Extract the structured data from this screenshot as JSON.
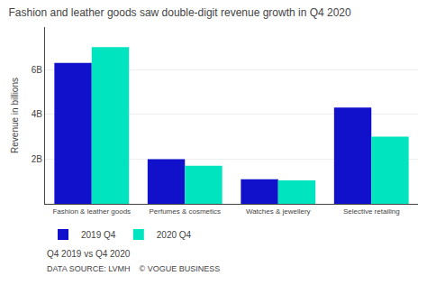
{
  "chart_data": {
    "type": "bar",
    "title": "Fashion and leather goods saw double-digit revenue growth in Q4 2020",
    "ylabel": "Revenue in billions",
    "categories": [
      "Fashion & leather goods",
      "Perfumes & cosmetics",
      "Watches & jewellery",
      "Selective retailing"
    ],
    "series": [
      {
        "name": "2019 Q4",
        "color": "#1111cc",
        "values": [
          6.3,
          2.0,
          1.1,
          4.3
        ]
      },
      {
        "name": "2020 Q4",
        "color": "#00e5c0",
        "values": [
          7.0,
          1.7,
          1.05,
          3.0
        ]
      }
    ],
    "ylim": [
      0,
      7.9
    ],
    "yticks": [
      {
        "value": 2,
        "label": "2B"
      },
      {
        "value": 4,
        "label": "4B"
      },
      {
        "value": 6,
        "label": "6B"
      }
    ],
    "grid": true,
    "legend": "bottom",
    "annotations": [
      "Q4 2019 vs Q4 2020",
      "DATA SOURCE: LVMH    © VOGUE BUSINESS"
    ]
  }
}
